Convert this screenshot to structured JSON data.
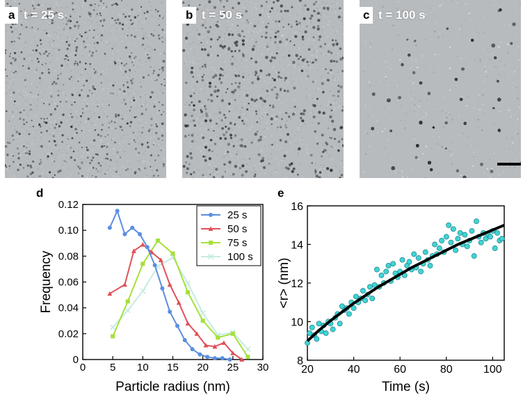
{
  "panels": [
    {
      "letter": "a",
      "time_label": "t = 25 s"
    },
    {
      "letter": "b",
      "time_label": "t = 50 s"
    },
    {
      "letter": "c",
      "time_label": "t = 100 s"
    }
  ],
  "chart_data": [
    {
      "panel": "d",
      "type": "line",
      "xlabel": "Particle radius (nm)",
      "ylabel": "Frequency",
      "xlim": [
        0,
        30
      ],
      "ylim": [
        0,
        0.12
      ],
      "xticks": [
        0,
        5,
        10,
        15,
        20,
        25,
        30
      ],
      "yticks": [
        "0",
        "0.02",
        "0.04",
        "0.06",
        "0.08",
        "0.10",
        "0.12"
      ],
      "legend": "top-right",
      "series": [
        {
          "name": "25 s",
          "color": "#5b8ee0",
          "marker": "circle",
          "x": [
            4.5,
            5.75,
            7,
            8.25,
            9.5,
            10.75,
            12,
            13.25,
            14.5,
            15.75,
            17,
            18.25,
            19.5,
            20.75,
            22,
            23.25,
            24.5
          ],
          "y": [
            0.102,
            0.115,
            0.097,
            0.102,
            0.097,
            0.087,
            0.073,
            0.055,
            0.037,
            0.026,
            0.015,
            0.008,
            0.004,
            0.002,
            0.001,
            0.001,
            0.0
          ]
        },
        {
          "name": "50 s",
          "color": "#e0505a",
          "marker": "triangle",
          "x": [
            4.5,
            7,
            8.5,
            10,
            11.5,
            13,
            14.5,
            16,
            17.5,
            19,
            20.5,
            22,
            23.5,
            25,
            26.5
          ],
          "y": [
            0.051,
            0.058,
            0.084,
            0.089,
            0.083,
            0.077,
            0.058,
            0.044,
            0.028,
            0.02,
            0.011,
            0.01,
            0.013,
            0.005,
            0.0
          ]
        },
        {
          "name": "75 s",
          "color": "#a6e03c",
          "marker": "square",
          "x": [
            5,
            7.5,
            10,
            12.5,
            15,
            17.5,
            20,
            22.5,
            25,
            27.5
          ],
          "y": [
            0.018,
            0.045,
            0.074,
            0.092,
            0.082,
            0.052,
            0.03,
            0.017,
            0.02,
            0.002
          ]
        },
        {
          "name": "100 s",
          "color": "#c5ece2",
          "marker": "cross",
          "x": [
            5,
            7.5,
            10,
            12.5,
            15,
            17.5,
            20,
            22.5,
            25,
            27.5
          ],
          "y": [
            0.025,
            0.038,
            0.053,
            0.072,
            0.079,
            0.059,
            0.036,
            0.019,
            0.021,
            0.008
          ]
        }
      ]
    },
    {
      "panel": "e",
      "type": "scatter",
      "xlabel": "Time (s)",
      "ylabel": "<r> (nm)",
      "xlim": [
        20,
        105
      ],
      "ylim": [
        8,
        16
      ],
      "xticks": [
        20,
        40,
        60,
        80,
        100
      ],
      "yticks": [
        8,
        10,
        12,
        14,
        16
      ],
      "marker_color": "#40d4d4",
      "fit_color": "#000000",
      "fit_curve": {
        "x": [
          20,
          25,
          30,
          35,
          40,
          45,
          50,
          55,
          60,
          65,
          70,
          75,
          80,
          85,
          90,
          95,
          100,
          105
        ],
        "y": [
          9.0,
          9.55,
          10.05,
          10.5,
          10.95,
          11.35,
          11.75,
          12.1,
          12.45,
          12.8,
          13.1,
          13.4,
          13.7,
          14.0,
          14.25,
          14.5,
          14.75,
          15.0
        ]
      },
      "points": {
        "x": [
          20,
          21,
          22,
          23,
          24,
          25,
          26,
          27,
          28,
          29,
          30,
          31,
          32,
          33,
          34,
          35,
          36,
          37,
          38,
          39,
          40,
          41,
          42,
          43,
          44,
          45,
          46,
          47,
          48,
          49,
          50,
          51,
          52,
          53,
          54,
          55,
          56,
          57,
          58,
          59,
          60,
          61,
          62,
          63,
          64,
          65,
          66,
          67,
          68,
          69,
          70,
          71,
          72,
          73,
          74,
          75,
          76,
          77,
          78,
          79,
          80,
          81,
          82,
          83,
          84,
          85,
          86,
          87,
          88,
          89,
          90,
          91,
          92,
          93,
          94,
          95,
          96,
          97,
          98,
          99,
          100,
          101,
          102,
          103,
          104
        ],
        "y": [
          8.9,
          9.4,
          9.7,
          9.3,
          9.1,
          9.9,
          9.5,
          9.8,
          9.4,
          10.0,
          9.9,
          9.6,
          10.2,
          10.4,
          9.9,
          10.8,
          10.6,
          10.7,
          10.4,
          11.0,
          10.7,
          11.3,
          11.0,
          11.2,
          11.6,
          11.1,
          11.4,
          11.8,
          11.2,
          11.9,
          12.7,
          11.8,
          12.4,
          12.0,
          12.6,
          12.9,
          12.1,
          13.0,
          12.5,
          12.3,
          12.6,
          13.2,
          12.4,
          12.9,
          13.1,
          12.7,
          13.5,
          12.8,
          13.3,
          12.6,
          13.0,
          13.6,
          13.2,
          12.9,
          13.4,
          14.0,
          13.5,
          13.8,
          14.2,
          13.6,
          14.4,
          15.0,
          14.1,
          14.8,
          13.7,
          14.3,
          14.6,
          14.0,
          14.5,
          13.9,
          14.2,
          14.7,
          13.4,
          15.2,
          14.4,
          14.1,
          14.6,
          14.3,
          14.5,
          14.4,
          14.7,
          13.8,
          14.6,
          14.2,
          14.3
        ]
      }
    }
  ]
}
